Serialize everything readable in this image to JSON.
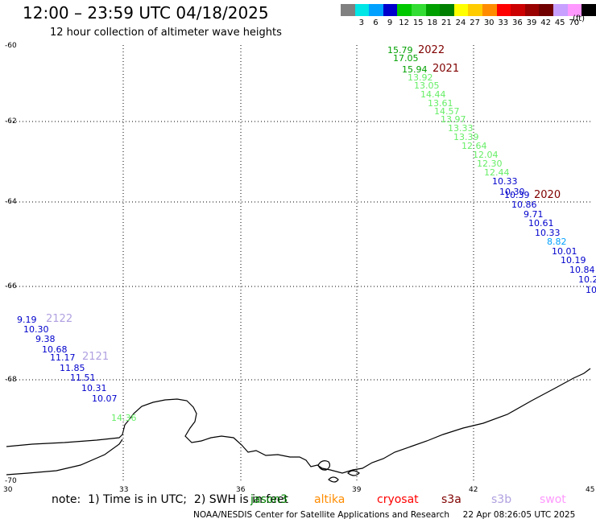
{
  "header": {
    "title": "12:00 – 23:59 UTC 04/18/2025",
    "subtitle": "12 hour collection of altimeter wave heights"
  },
  "legend": {
    "unit": "(ft)",
    "items": [
      {
        "label": "",
        "color": "#808080"
      },
      {
        "label": "3",
        "color": "#00e5e5"
      },
      {
        "label": "6",
        "color": "#00a0ff"
      },
      {
        "label": "9",
        "color": "#0000cc"
      },
      {
        "label": "12",
        "color": "#00c800"
      },
      {
        "label": "15",
        "color": "#33dd33"
      },
      {
        "label": "18",
        "color": "#00a000"
      },
      {
        "label": "21",
        "color": "#008000"
      },
      {
        "label": "24",
        "color": "#ffff00"
      },
      {
        "label": "27",
        "color": "#ffcc00"
      },
      {
        "label": "30",
        "color": "#ff8c00"
      },
      {
        "label": "33",
        "color": "#ff0000"
      },
      {
        "label": "36",
        "color": "#cc0000"
      },
      {
        "label": "39",
        "color": "#990000"
      },
      {
        "label": "42",
        "color": "#700000"
      },
      {
        "label": "45",
        "color": "#c8a0ff"
      },
      {
        "label": "70",
        "color": "#ff99ff"
      },
      {
        "label": "",
        "color": "#000000"
      }
    ]
  },
  "map": {
    "y_ticks": [
      "-60",
      "-62",
      "-64",
      "-66",
      "-68",
      "-70"
    ],
    "x_ticks": [
      "30",
      "33",
      "36",
      "39",
      "42",
      "45"
    ]
  },
  "tracks": {
    "track_labels": [
      {
        "text": "2022",
        "color": "#800000"
      },
      {
        "text": "2021",
        "color": "#800000"
      },
      {
        "text": "2020",
        "color": "#800000"
      },
      {
        "text": "2122",
        "color": "#b0a0e0"
      },
      {
        "text": "2121",
        "color": "#b0a0e0"
      }
    ],
    "values": [
      {
        "text": "15.79",
        "color": "#00a000"
      },
      {
        "text": "17.05",
        "color": "#00a000"
      },
      {
        "text": "15.94",
        "color": "#00a000"
      },
      {
        "text": "13.92",
        "color": "#66ee66"
      },
      {
        "text": "13.05",
        "color": "#66ee66"
      },
      {
        "text": "14.44",
        "color": "#66ee66"
      },
      {
        "text": "13.61",
        "color": "#66ee66"
      },
      {
        "text": "14.57",
        "color": "#66ee66"
      },
      {
        "text": "13.97",
        "color": "#66ee66"
      },
      {
        "text": "13.33",
        "color": "#66ee66"
      },
      {
        "text": "13.39",
        "color": "#66ee66"
      },
      {
        "text": "12.64",
        "color": "#66ee66"
      },
      {
        "text": "12.04",
        "color": "#66ee66"
      },
      {
        "text": "12.30",
        "color": "#66ee66"
      },
      {
        "text": "12.44",
        "color": "#66ee66"
      },
      {
        "text": "10.33",
        "color": "#0000cc"
      },
      {
        "text": "10.30",
        "color": "#0000cc"
      },
      {
        "text": "10.39",
        "color": "#0000cc"
      },
      {
        "text": "10.86",
        "color": "#0000cc"
      },
      {
        "text": "9.71",
        "color": "#0000cc"
      },
      {
        "text": "10.61",
        "color": "#0000cc"
      },
      {
        "text": "10.33",
        "color": "#0000cc"
      },
      {
        "text": "8.82",
        "color": "#00a0ff"
      },
      {
        "text": "10.01",
        "color": "#0000cc"
      },
      {
        "text": "10.19",
        "color": "#0000cc"
      },
      {
        "text": "10.84",
        "color": "#0000cc"
      },
      {
        "text": "10.2",
        "color": "#0000cc"
      },
      {
        "text": "10",
        "color": "#0000cc"
      },
      {
        "text": "9.19",
        "color": "#0000cc"
      },
      {
        "text": "10.30",
        "color": "#0000cc"
      },
      {
        "text": "9.38",
        "color": "#0000cc"
      },
      {
        "text": "10.68",
        "color": "#0000cc"
      },
      {
        "text": "11.17",
        "color": "#0000cc"
      },
      {
        "text": "11.85",
        "color": "#0000cc"
      },
      {
        "text": "11.51",
        "color": "#0000cc"
      },
      {
        "text": "10.31",
        "color": "#0000cc"
      },
      {
        "text": "10.07",
        "color": "#0000cc"
      },
      {
        "text": "14.36",
        "color": "#66ee66"
      }
    ]
  },
  "footer": {
    "note": "note:  1) Time is in UTC;  2) SWH is in feet",
    "satellites": [
      {
        "name": "jason3",
        "color": "#008000"
      },
      {
        "name": "altika",
        "color": "#ff8c00"
      },
      {
        "name": "cryosat",
        "color": "#ff0000"
      },
      {
        "name": "s3a",
        "color": "#800000"
      },
      {
        "name": "s3b",
        "color": "#b0a0e0"
      },
      {
        "name": "swot",
        "color": "#ff99ff"
      }
    ],
    "credit": "NOAA/NESDIS Center for Satellite Applications and Research     22 Apr 08:26:05 UTC 2025"
  }
}
